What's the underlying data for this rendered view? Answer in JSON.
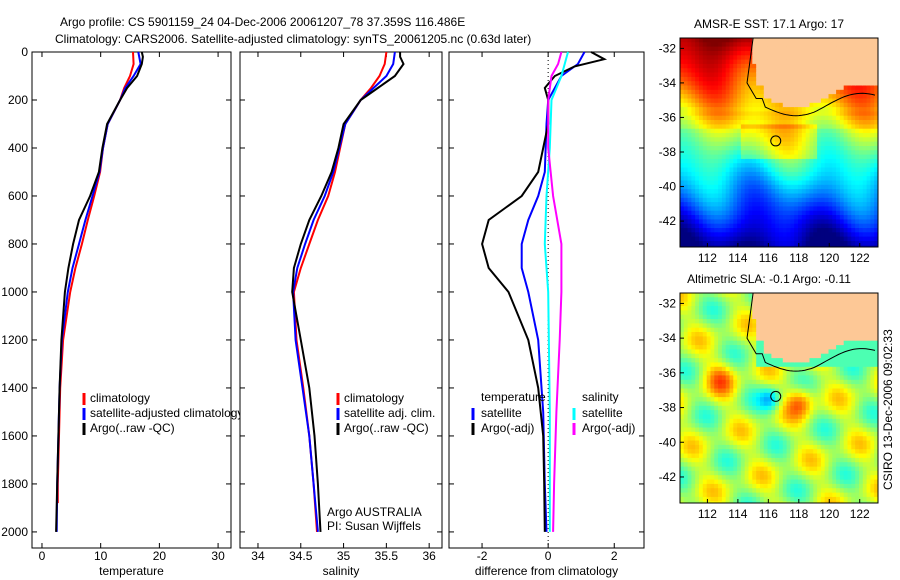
{
  "title_line1": "Argo profile: CS 5901159_24 04-Dec-2006 20061207_78 37.359S 116.486E",
  "title_line2": "Climatology: CARS2006. Satellite-adjusted climatology: synTS_20061205.nc (0.63d later)",
  "credit": "CSIRO 13-Dec-2006 09:02:33",
  "chart_data": [
    {
      "type": "line",
      "id": "temperature",
      "xlabel": "temperature",
      "ylabel": "",
      "xlim": [
        -1.7,
        32.2
      ],
      "ylim": [
        2067,
        0
      ],
      "xticks": [
        "0",
        "10",
        "20",
        "30"
      ],
      "xtick_values": [
        0,
        10,
        20,
        30
      ],
      "yticks": [
        "0",
        "200",
        "400",
        "600",
        "800",
        "1000",
        "1200",
        "1400",
        "1600",
        "1800",
        "2000"
      ],
      "legend": [
        "climatology",
        "satellite-adjusted climatology",
        "Argo(..raw -QC)"
      ],
      "series": [
        {
          "name": "climatology",
          "color": "#ff0000",
          "depth": [
            0,
            50,
            100,
            150,
            200,
            300,
            400,
            500,
            600,
            700,
            800,
            900,
            1000,
            1200,
            1400,
            1600,
            1800,
            1880
          ],
          "values": [
            15.5,
            15.6,
            15.0,
            14.0,
            13.3,
            11.2,
            10.4,
            9.9,
            8.9,
            7.8,
            6.8,
            5.7,
            4.8,
            3.6,
            3.1,
            2.9,
            2.7,
            2.7
          ]
        },
        {
          "name": "satellite-adjusted climatology",
          "color": "#0000ff",
          "depth": [
            0,
            50,
            100,
            150,
            200,
            300,
            400,
            500,
            600,
            700,
            800,
            900,
            1000,
            1200,
            1400,
            1600,
            1800,
            2000
          ],
          "values": [
            16.4,
            16.8,
            15.6,
            14.2,
            13.3,
            11.2,
            10.4,
            9.8,
            8.6,
            7.4,
            6.3,
            5.2,
            4.4,
            3.4,
            3.0,
            2.8,
            2.6,
            2.5
          ]
        },
        {
          "name": "Argo(..raw -QC)",
          "color": "#000000",
          "depth": [
            0,
            20,
            50,
            100,
            150,
            200,
            300,
            400,
            500,
            600,
            700,
            800,
            900,
            1000,
            1200,
            1400,
            1600,
            1800,
            2000
          ],
          "values": [
            17.0,
            17.2,
            17.0,
            16.2,
            14.5,
            13.3,
            11.1,
            10.3,
            9.7,
            8.2,
            6.3,
            5.3,
            4.5,
            3.9,
            3.3,
            3.0,
            2.8,
            2.6,
            2.4
          ]
        }
      ]
    },
    {
      "type": "line",
      "id": "salinity",
      "xlabel": "salinity",
      "xlim": [
        33.79,
        36.15
      ],
      "ylim": [
        2067,
        0
      ],
      "xticks": [
        "34",
        "34.5",
        "35",
        "35.5",
        "36"
      ],
      "xtick_values": [
        34,
        34.5,
        35,
        35.5,
        36
      ],
      "legend": [
        "climatology",
        "satellite adj. clim.",
        "Argo(..raw -QC)"
      ],
      "annotation": [
        "Argo AUSTRALIA",
        "PI: Susan Wijffels"
      ],
      "series": [
        {
          "name": "climatology",
          "color": "#ff0000",
          "depth": [
            0,
            50,
            100,
            150,
            200,
            300,
            400,
            500,
            600,
            700,
            800,
            900,
            1000,
            1200,
            1400,
            1600,
            1800,
            2000
          ],
          "values": [
            35.5,
            35.48,
            35.42,
            35.32,
            35.2,
            35.02,
            34.96,
            34.9,
            34.82,
            34.7,
            34.6,
            34.5,
            34.42,
            34.45,
            34.53,
            34.6,
            34.65,
            34.69
          ]
        },
        {
          "name": "satellite adj. clim.",
          "color": "#0000ff",
          "depth": [
            0,
            50,
            100,
            150,
            200,
            300,
            400,
            500,
            600,
            700,
            800,
            900,
            1000,
            1200,
            1400,
            1600,
            1800,
            2000
          ],
          "values": [
            35.6,
            35.58,
            35.5,
            35.35,
            35.2,
            35.02,
            34.95,
            34.88,
            34.78,
            34.65,
            34.55,
            34.46,
            34.41,
            34.44,
            34.52,
            34.6,
            34.65,
            34.7
          ]
        },
        {
          "name": "Argo(..raw -QC)",
          "color": "#000000",
          "depth": [
            0,
            20,
            50,
            100,
            150,
            200,
            300,
            400,
            500,
            600,
            700,
            800,
            900,
            1000,
            1200,
            1400,
            1600,
            1800,
            2000
          ],
          "values": [
            35.66,
            35.66,
            35.7,
            35.6,
            35.4,
            35.2,
            35.0,
            34.94,
            34.86,
            34.74,
            34.6,
            34.5,
            34.42,
            34.4,
            34.5,
            34.6,
            34.66,
            34.7,
            34.73
          ]
        }
      ]
    },
    {
      "type": "line",
      "id": "difference",
      "xlabel": "difference from climatology",
      "xlim": [
        -3.0,
        2.9
      ],
      "ylim": [
        2067,
        0
      ],
      "xticks": [
        "-2",
        "0",
        "2"
      ],
      "xtick_values": [
        -2,
        0,
        2
      ],
      "legend_temperature_title": "temperature",
      "legend_salinity_title": "salinity",
      "legend": [
        "satellite",
        "Argo(-adj)",
        "satellite",
        "Argo(-adj)"
      ],
      "series": [
        {
          "name": "temperature satellite",
          "color": "#0000ff",
          "depth": [
            0,
            50,
            100,
            200,
            300,
            500,
            600,
            700,
            800,
            900,
            1000,
            1200,
            1500,
            1800,
            2000
          ],
          "values": [
            1.1,
            0.9,
            0.4,
            0.0,
            -0.05,
            -0.1,
            -0.3,
            -0.6,
            -0.8,
            -0.8,
            -0.6,
            -0.3,
            -0.15,
            -0.1,
            -0.05
          ]
        },
        {
          "name": "temperature Argo(-adj)",
          "color": "#000000",
          "depth": [
            0,
            30,
            60,
            100,
            150,
            200,
            300,
            500,
            600,
            650,
            700,
            800,
            900,
            1000,
            1200,
            1400,
            1600,
            1800,
            2000
          ],
          "values": [
            1.3,
            1.7,
            0.8,
            0.2,
            -0.1,
            0.0,
            0.0,
            -0.3,
            -0.8,
            -1.3,
            -1.8,
            -2.0,
            -1.8,
            -1.2,
            -0.6,
            -0.3,
            -0.15,
            -0.12,
            -0.1
          ]
        },
        {
          "name": "salinity satellite",
          "color": "#00ffff",
          "depth": [
            0,
            50,
            100,
            200,
            400,
            600,
            800,
            1000,
            1500,
            2000
          ],
          "values": [
            0.6,
            0.5,
            0.4,
            0.1,
            0.05,
            -0.05,
            -0.1,
            0.0,
            0.05,
            0.05
          ]
        },
        {
          "name": "salinity Argo(-adj)",
          "color": "#ff00ff",
          "depth": [
            0,
            50,
            100,
            200,
            400,
            600,
            800,
            1000,
            1200,
            1500,
            1800,
            2000
          ],
          "values": [
            0.4,
            0.3,
            0.1,
            0.0,
            0.0,
            0.15,
            0.4,
            0.4,
            0.35,
            0.25,
            0.18,
            0.15
          ]
        }
      ]
    },
    {
      "type": "heatmap",
      "id": "sst_map",
      "title": "AMSR-E SST: 17.1 Argo: 17",
      "xlim": [
        110.2,
        123.2
      ],
      "ylim": [
        -43.5,
        -31.4
      ],
      "xticks": [
        "112",
        "114",
        "116",
        "118",
        "120",
        "122"
      ],
      "yticks": [
        "-32",
        "-34",
        "-36",
        "-38",
        "-40",
        "-42"
      ],
      "profile_location": [
        116.486,
        -37.359
      ]
    },
    {
      "type": "heatmap",
      "id": "sla_map",
      "title": "Altimetric SLA: -0.1 Argo: -0.11",
      "xlim": [
        110.2,
        123.2
      ],
      "ylim": [
        -43.5,
        -31.4
      ],
      "xticks": [
        "112",
        "114",
        "116",
        "118",
        "120",
        "122"
      ],
      "yticks": [
        "-32",
        "-34",
        "-36",
        "-38",
        "-40",
        "-42"
      ],
      "profile_location": [
        116.486,
        -37.359
      ]
    }
  ]
}
